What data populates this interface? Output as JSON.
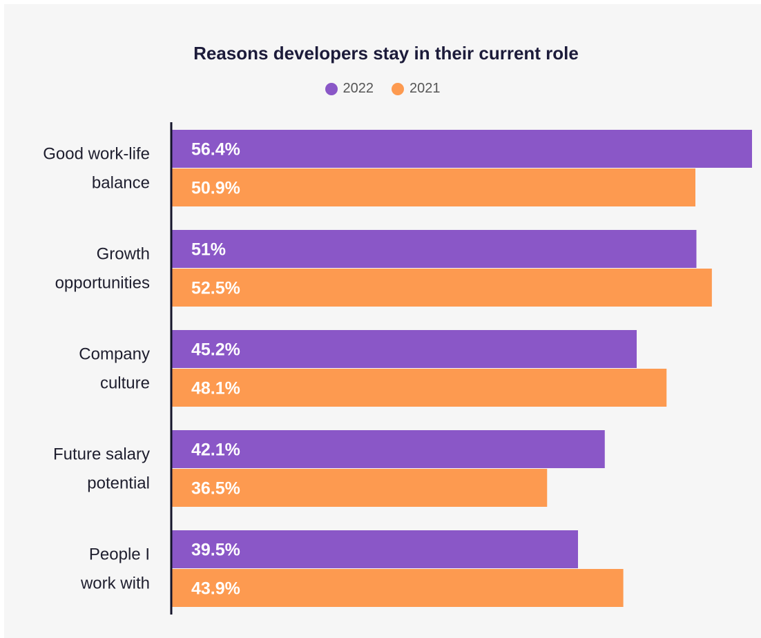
{
  "chart_data": {
    "type": "bar",
    "orientation": "horizontal",
    "title": "Reasons developers stay in their current role",
    "categories": [
      [
        "Good work-life",
        "balance"
      ],
      [
        "Growth",
        "opportunities"
      ],
      [
        "Company",
        "culture"
      ],
      [
        "Future salary",
        "potential"
      ],
      [
        "People I",
        "work with"
      ]
    ],
    "series": [
      {
        "name": "2022",
        "color": "#8a57c7",
        "values": [
          56.4,
          51,
          45.2,
          42.1,
          39.5
        ],
        "labels": [
          "56.4%",
          "51%",
          "45.2%",
          "42.1%",
          "39.5%"
        ]
      },
      {
        "name": "2021",
        "color": "#fd9a50",
        "values": [
          50.9,
          52.5,
          48.1,
          36.5,
          43.9
        ],
        "labels": [
          "50.9%",
          "52.5%",
          "48.1%",
          "36.5%",
          "43.9%"
        ]
      }
    ],
    "xlim": [
      0,
      56.4
    ],
    "legend_position": "top-center",
    "grid": false
  }
}
